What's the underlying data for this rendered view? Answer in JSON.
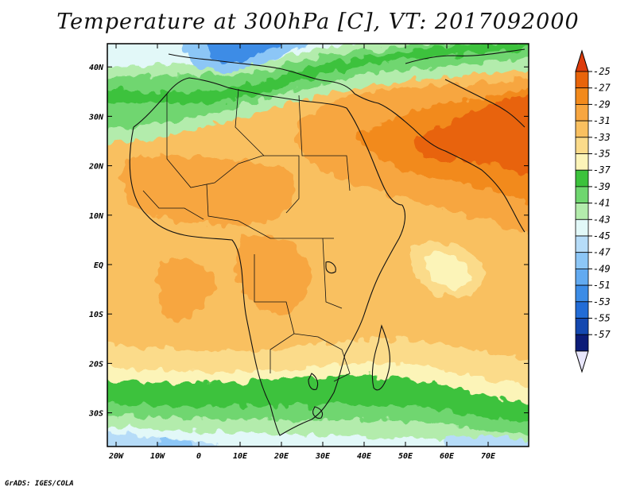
{
  "title": "Temperature at 300hPa [C], VT: 2017092000",
  "credit": "GrADS: IGES/COLA",
  "map": {
    "lat_ticks": [
      {
        "value": 40,
        "label": "40N"
      },
      {
        "value": 30,
        "label": "30N"
      },
      {
        "value": 20,
        "label": "20N"
      },
      {
        "value": 10,
        "label": "10N"
      },
      {
        "value": 0,
        "label": "EQ"
      },
      {
        "value": -10,
        "label": "10S"
      },
      {
        "value": -20,
        "label": "20S"
      },
      {
        "value": -30,
        "label": "30S"
      }
    ],
    "lon_ticks": [
      {
        "value": -20,
        "label": "20W"
      },
      {
        "value": -10,
        "label": "10W"
      },
      {
        "value": 0,
        "label": "0"
      },
      {
        "value": 10,
        "label": "10E"
      },
      {
        "value": 20,
        "label": "20E"
      },
      {
        "value": 30,
        "label": "30E"
      },
      {
        "value": 40,
        "label": "40E"
      },
      {
        "value": 50,
        "label": "50E"
      },
      {
        "value": 60,
        "label": "60E"
      },
      {
        "value": 70,
        "label": "70E"
      }
    ]
  },
  "colorbar": {
    "levels": [
      {
        "label": "-25",
        "color": "#e8640a"
      },
      {
        "label": "-27",
        "color": "#f28a1c"
      },
      {
        "label": "-29",
        "color": "#f7a640"
      },
      {
        "label": "-31",
        "color": "#f9c060"
      },
      {
        "label": "-33",
        "color": "#fbdb8a"
      },
      {
        "label": "-35",
        "color": "#fcf4b8"
      },
      {
        "label": "-37",
        "color": "#3cc23c"
      },
      {
        "label": "-39",
        "color": "#6fd66f"
      },
      {
        "label": "-41",
        "color": "#b3ecac"
      },
      {
        "label": "-43",
        "color": "#e2f8f8"
      },
      {
        "label": "-45",
        "color": "#b6dcf8"
      },
      {
        "label": "-47",
        "color": "#8cc6f6"
      },
      {
        "label": "-49",
        "color": "#62aaf0"
      },
      {
        "label": "-51",
        "color": "#3c8ce6"
      },
      {
        "label": "-53",
        "color": "#226cd6"
      },
      {
        "label": "-55",
        "color": "#1448b0"
      },
      {
        "label": "-57",
        "color": "#0c1c78"
      }
    ],
    "top_color": "#dd3c0c",
    "bottom_color": "#e8e6fb"
  }
}
